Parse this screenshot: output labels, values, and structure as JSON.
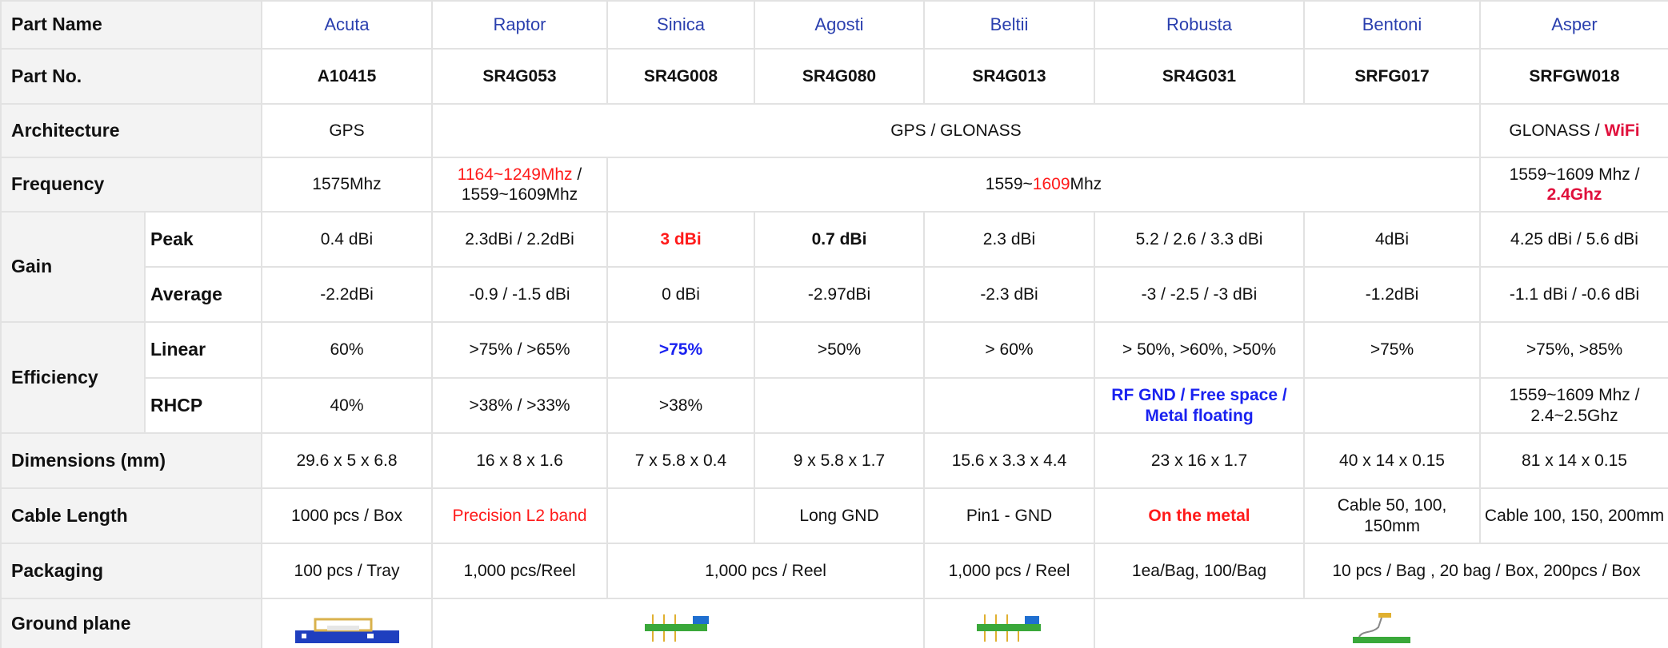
{
  "rows": [
    {
      "label": "Part Name",
      "cells": [
        "Acuta",
        "Raptor",
        "Sinica",
        "Agosti",
        "Beltii",
        "Robusta",
        "Bentoni",
        "Asper"
      ]
    },
    {
      "label": "Part No.",
      "cells": [
        "A10415",
        "SR4G053",
        "SR4G008",
        "SR4G080",
        "SR4G013",
        "SR4G031",
        "SRFG017",
        "SRFGW018"
      ]
    },
    {
      "label": "Architecture",
      "cells": [
        "GPS",
        "GPS / GLONASS",
        [
          "GLONASS / ",
          "WiFi"
        ]
      ]
    },
    {
      "label": "Frequency",
      "cells": [
        "1575Mhz",
        [
          "1164~1249Mhz",
          " /",
          "1559~1609Mhz"
        ],
        [
          "1559~",
          "1609",
          "Mhz"
        ],
        [
          "1559~1609 Mhz /",
          "2.4Ghz"
        ]
      ]
    },
    {
      "label": "Gain",
      "sub": [
        {
          "label": "Peak",
          "cells": [
            "0.4 dBi",
            "2.3dBi / 2.2dBi",
            "3 dBi",
            "0.7 dBi",
            "2.3 dBi",
            "5.2 / 2.6 / 3.3 dBi",
            "4dBi",
            "4.25 dBi / 5.6 dBi"
          ]
        },
        {
          "label": "Average",
          "cells": [
            "-2.2dBi",
            "-0.9 / -1.5 dBi",
            "0 dBi",
            "-2.97dBi",
            "-2.3 dBi",
            "-3 / -2.5 / -3 dBi",
            "-1.2dBi",
            "-1.1 dBi / -0.6 dBi"
          ]
        }
      ]
    },
    {
      "label": "Efficiency",
      "sub": [
        {
          "label": "Linear",
          "cells": [
            "60%",
            ">75% / >65%",
            ">75%",
            ">50%",
            "> 60%",
            "> 50%, >60%, >50%",
            ">75%",
            ">75%, >85%"
          ]
        },
        {
          "label": "RHCP",
          "cells": [
            "40%",
            ">38% / >33%",
            ">38%",
            "RF GND / Free space / Metal floating",
            "1559~1609 Mhz / 2.4~2.5Ghz"
          ]
        }
      ]
    },
    {
      "label": "Dimensions (mm)",
      "cells": [
        "29.6 x 5 x 6.8",
        "16 x 8 x 1.6",
        "7 x 5.8 x 0.4",
        "9 x 5.8 x 1.7",
        "15.6 x 3.3 x 4.4",
        "23 x 16 x 1.7",
        "40 x 14 x 0.15",
        "81 x 14 x 0.15"
      ]
    },
    {
      "label": "Cable Length",
      "cells": [
        "1000 pcs / Box",
        "Precision L2 band",
        "Long GND",
        "Pin1 - GND",
        "On the metal",
        "Cable 50, 100, 150mm",
        "Cable 100, 150, 200mm"
      ]
    },
    {
      "label": "Packaging",
      "cells": [
        "100 pcs / Tray",
        "1,000 pcs/Reel",
        "1,000 pcs / Reel",
        "1,000 pcs / Reel",
        "1ea/Bag, 100/Bag",
        "10 pcs / Bag , 20 bag / Box, 200pcs / Box"
      ]
    },
    {
      "label": "Ground  plane"
    }
  ]
}
